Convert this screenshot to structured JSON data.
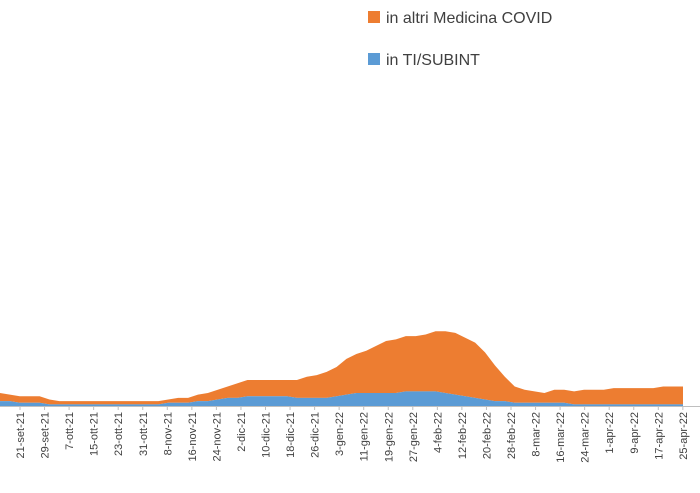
{
  "chart_data": {
    "type": "area",
    "stacked": true,
    "colors": {
      "orange": "#ED7D31",
      "blue": "#5B9BD5",
      "axis": "#bfbfbf",
      "tick_text": "#404040"
    },
    "legend": {
      "placement": "top-right",
      "entries": [
        {
          "label": "in altri Medicina COVID",
          "color": "#ED7D31"
        },
        {
          "label": "in TI/SUBINT",
          "color": "#5B9BD5"
        }
      ]
    },
    "x_tick_labels": [
      "21-set-21",
      "29-set-21",
      "7-ott-21",
      "15-ott-21",
      "23-ott-21",
      "31-ott-21",
      "8-nov-21",
      "16-nov-21",
      "24-nov-21",
      "2-dic-21",
      "10-dic-21",
      "18-dic-21",
      "26-dic-21",
      "3-gen-22",
      "11-gen-22",
      "19-gen-22",
      "27-gen-22",
      "4-feb-22",
      "12-feb-22",
      "20-feb-22",
      "28-feb-22",
      "8-mar-22",
      "16-mar-22",
      "24-mar-22",
      "1-apr-22",
      "9-apr-22",
      "17-apr-22",
      "25-apr-22"
    ],
    "ylim": [
      0,
      120
    ],
    "grid": false,
    "series": [
      {
        "name": "in TI/SUBINT",
        "color": "#5B9BD5",
        "values": [
          3,
          3,
          2,
          2,
          2,
          1,
          1,
          1,
          1,
          1,
          1,
          1,
          1,
          1,
          1,
          1,
          1,
          2,
          2,
          2,
          3,
          3,
          4,
          5,
          5,
          6,
          6,
          6,
          6,
          6,
          5,
          5,
          5,
          5,
          6,
          7,
          8,
          8,
          8,
          8,
          8,
          9,
          9,
          9,
          9,
          8,
          7,
          6,
          5,
          4,
          3,
          3,
          2,
          2,
          2,
          2,
          2,
          2,
          1,
          1,
          1,
          1,
          1,
          1,
          1,
          1,
          1,
          1,
          1,
          1
        ]
      },
      {
        "name": "in altri Medicina COVID",
        "color": "#ED7D31",
        "values": [
          5,
          4,
          4,
          4,
          4,
          3,
          2,
          2,
          2,
          2,
          2,
          2,
          2,
          2,
          2,
          2,
          2,
          2,
          3,
          3,
          4,
          5,
          6,
          7,
          9,
          10,
          10,
          10,
          10,
          10,
          11,
          13,
          14,
          16,
          18,
          22,
          24,
          26,
          29,
          32,
          33,
          34,
          34,
          35,
          37,
          38,
          38,
          36,
          34,
          29,
          22,
          15,
          10,
          8,
          7,
          6,
          8,
          8,
          8,
          9,
          9,
          9,
          10,
          10,
          10,
          10,
          10,
          11,
          11,
          11
        ]
      }
    ]
  }
}
